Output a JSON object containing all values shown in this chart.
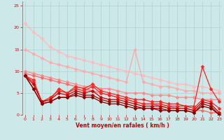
{
  "x": [
    0,
    1,
    2,
    3,
    4,
    5,
    6,
    7,
    8,
    9,
    10,
    11,
    12,
    13,
    14,
    15,
    16,
    17,
    18,
    19,
    20,
    21,
    22,
    23
  ],
  "line1_top": [
    21,
    19,
    17.5,
    15.5,
    14.5,
    13.5,
    13,
    12.5,
    12,
    11.5,
    11,
    10.5,
    10,
    9.5,
    9,
    8.5,
    8,
    7.5,
    7,
    7,
    6.5,
    6.5,
    6,
    5.5
  ],
  "line2_upper": [
    15,
    14,
    13,
    12,
    11.5,
    11,
    10.5,
    10,
    9.5,
    9,
    8.5,
    8,
    7.5,
    15,
    7.5,
    7,
    6.5,
    6.5,
    6,
    5.5,
    5.5,
    5,
    5,
    5
  ],
  "line3_mid": [
    10,
    9.5,
    9,
    8.5,
    8,
    7.5,
    7,
    6.5,
    6.5,
    6,
    6,
    5.5,
    5,
    5,
    5,
    4.5,
    4.5,
    4.5,
    4,
    4,
    4,
    3.5,
    3.5,
    3.5
  ],
  "line4_straight": [
    9.5,
    9,
    8.5,
    8,
    7.5,
    7,
    6.5,
    6,
    5.5,
    5,
    4.5,
    4,
    3.5,
    3,
    2.5,
    2.5,
    2,
    2,
    1.5,
    1.5,
    1,
    1,
    0.5,
    0.5
  ],
  "line5_wavy1": [
    9,
    8,
    3,
    3.5,
    6,
    5,
    6.5,
    6,
    7,
    5.5,
    5,
    4.5,
    4,
    3.5,
    3.5,
    3,
    3,
    2.5,
    2.5,
    2,
    2,
    11,
    6,
    3
  ],
  "line6_wavy2": [
    9,
    7.5,
    3,
    4,
    5.5,
    5,
    6,
    5.5,
    6.5,
    5,
    4.5,
    4,
    3.5,
    3,
    2.5,
    2.5,
    2.5,
    2,
    2,
    2,
    1.5,
    3.5,
    3,
    1.5
  ],
  "line7_dark1": [
    9,
    7,
    3,
    3.5,
    5,
    4.5,
    5.5,
    5,
    5.5,
    4,
    3.5,
    3.5,
    3,
    2.5,
    2,
    2,
    2,
    1.5,
    1.5,
    1.5,
    1,
    3,
    2.5,
    0.5
  ],
  "line8_dark2": [
    9,
    6,
    2.5,
    3,
    4,
    4,
    5,
    4.5,
    4.5,
    3.5,
    3,
    3,
    2.5,
    2,
    1.5,
    1.5,
    1.5,
    1,
    1,
    1,
    0.5,
    2.5,
    2,
    0
  ],
  "line9_dark3": [
    9,
    6,
    2.5,
    3,
    4,
    4,
    4.5,
    4,
    4,
    3,
    2.5,
    2.5,
    2,
    1.5,
    1.5,
    1.5,
    1,
    1,
    1,
    1,
    0.5,
    2,
    1.5,
    0
  ],
  "col_lightest": "#ffbbbb",
  "col_light": "#ffaaaa",
  "col_mid": "#ff8888",
  "col_pink": "#ff6666",
  "col_red": "#ff2222",
  "col_dark": "#cc0000",
  "col_darker": "#aa0000",
  "col_darkest": "#880000",
  "bg": "#cce8e8",
  "grid": "#b0d0d0",
  "xlabel": "Vent moyen/en rafales ( km/h )",
  "xlim": [
    -0.3,
    23.3
  ],
  "ylim": [
    0,
    26
  ],
  "yticks": [
    0,
    5,
    10,
    15,
    20,
    25
  ],
  "xticks": [
    0,
    1,
    2,
    3,
    4,
    5,
    6,
    7,
    8,
    9,
    10,
    11,
    12,
    13,
    14,
    15,
    16,
    17,
    18,
    19,
    20,
    21,
    22,
    23
  ]
}
